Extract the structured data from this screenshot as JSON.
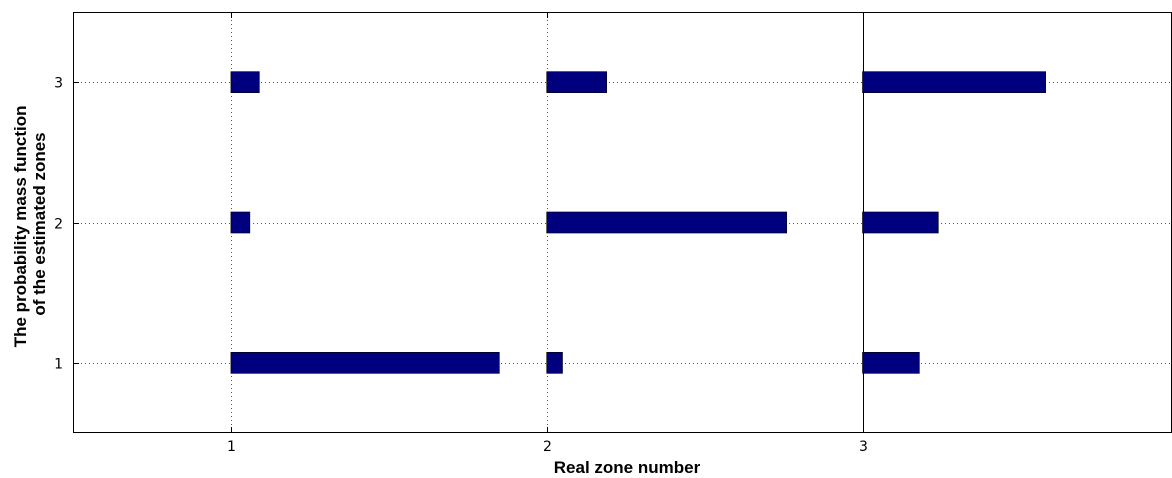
{
  "chart_data": {
    "type": "bar",
    "orientation": "horizontal",
    "xlabel": "Real zone number",
    "ylabel_lines": [
      "The probability mass function",
      "of the estimated zones"
    ],
    "xlim": [
      0.5,
      3.98
    ],
    "ylim": [
      0.5,
      3.5
    ],
    "xticks": [
      "1",
      "2",
      "3"
    ],
    "yticks": [
      "1",
      "2",
      "3"
    ],
    "grid": "dotted",
    "bar_color": "#00007F",
    "groups": [
      {
        "real_zone": 1,
        "probabilities": [
          0.85,
          0.06,
          0.09
        ]
      },
      {
        "real_zone": 2,
        "probabilities": [
          0.05,
          0.76,
          0.19
        ]
      },
      {
        "real_zone": 3,
        "probabilities": [
          0.18,
          0.24,
          0.58
        ]
      }
    ]
  }
}
